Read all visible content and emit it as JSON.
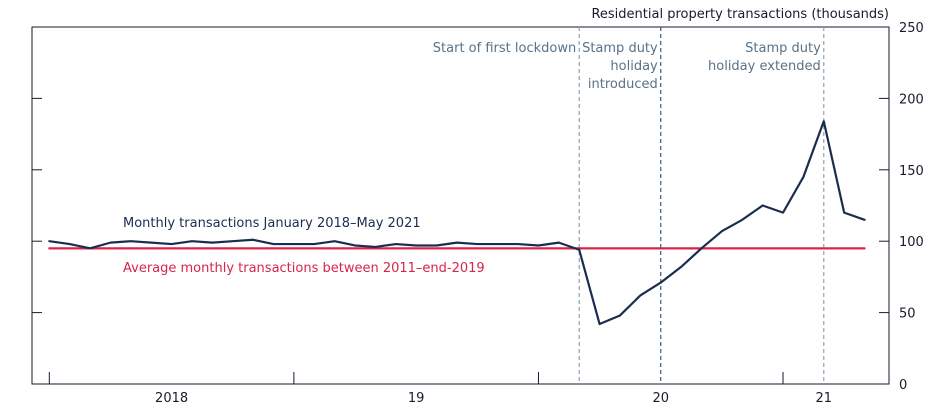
{
  "chart_data": {
    "type": "line",
    "ylabel": "Residential property transactions (thousands)",
    "ylim": [
      0,
      250
    ],
    "y_ticks": [
      0,
      50,
      100,
      150,
      200,
      250
    ],
    "x_tick_labels": [
      {
        "label": "2018",
        "date": "2018-07-01"
      },
      {
        "label": "19",
        "date": "2019-07-01"
      },
      {
        "label": "20",
        "date": "2020-07-01"
      },
      {
        "label": "21",
        "date": "2021-03-01"
      }
    ],
    "year_ticks": [
      "2018-01-01",
      "2019-01-01",
      "2020-01-01",
      "2021-01-01"
    ],
    "xlim": [
      "2017-12-01",
      "2021-06-01"
    ],
    "series": [
      {
        "name": "Monthly transactions January 2018–May 2021",
        "color": "#1b2d4f",
        "x": [
          "2018-01",
          "2018-02",
          "2018-03",
          "2018-04",
          "2018-05",
          "2018-06",
          "2018-07",
          "2018-08",
          "2018-09",
          "2018-10",
          "2018-11",
          "2018-12",
          "2019-01",
          "2019-02",
          "2019-03",
          "2019-04",
          "2019-05",
          "2019-06",
          "2019-07",
          "2019-08",
          "2019-09",
          "2019-10",
          "2019-11",
          "2019-12",
          "2020-01",
          "2020-02",
          "2020-03",
          "2020-04",
          "2020-05",
          "2020-06",
          "2020-07",
          "2020-08",
          "2020-09",
          "2020-10",
          "2020-11",
          "2020-12",
          "2021-01",
          "2021-02",
          "2021-03",
          "2021-04",
          "2021-05"
        ],
        "y": [
          100,
          98,
          95,
          99,
          100,
          99,
          98,
          100,
          99,
          100,
          101,
          98,
          98,
          98,
          100,
          97,
          96,
          98,
          97,
          97,
          99,
          98,
          98,
          98,
          97,
          99,
          94,
          42,
          48,
          62,
          71,
          82,
          95,
          107,
          115,
          125,
          120,
          145,
          184,
          120,
          115
        ]
      },
      {
        "name": "Average monthly transactions between 2011–end-2019",
        "color": "#d7254a",
        "x": [
          "2018-01",
          "2021-05"
        ],
        "y": [
          95,
          95
        ]
      }
    ],
    "annotations": [
      {
        "date": "2020-03-01",
        "lines": [
          "Start of first lockdown"
        ],
        "anchor": "end",
        "color": "#8fa1b3"
      },
      {
        "date": "2020-07-01",
        "lines": [
          "Stamp duty",
          "holiday",
          "introduced"
        ],
        "anchor": "end",
        "color": "#2f5f7f"
      },
      {
        "date": "2021-03-01",
        "lines": [
          "Stamp duty",
          "holiday extended"
        ],
        "anchor": "end",
        "color": "#8fa1b3"
      }
    ],
    "grid": false
  }
}
